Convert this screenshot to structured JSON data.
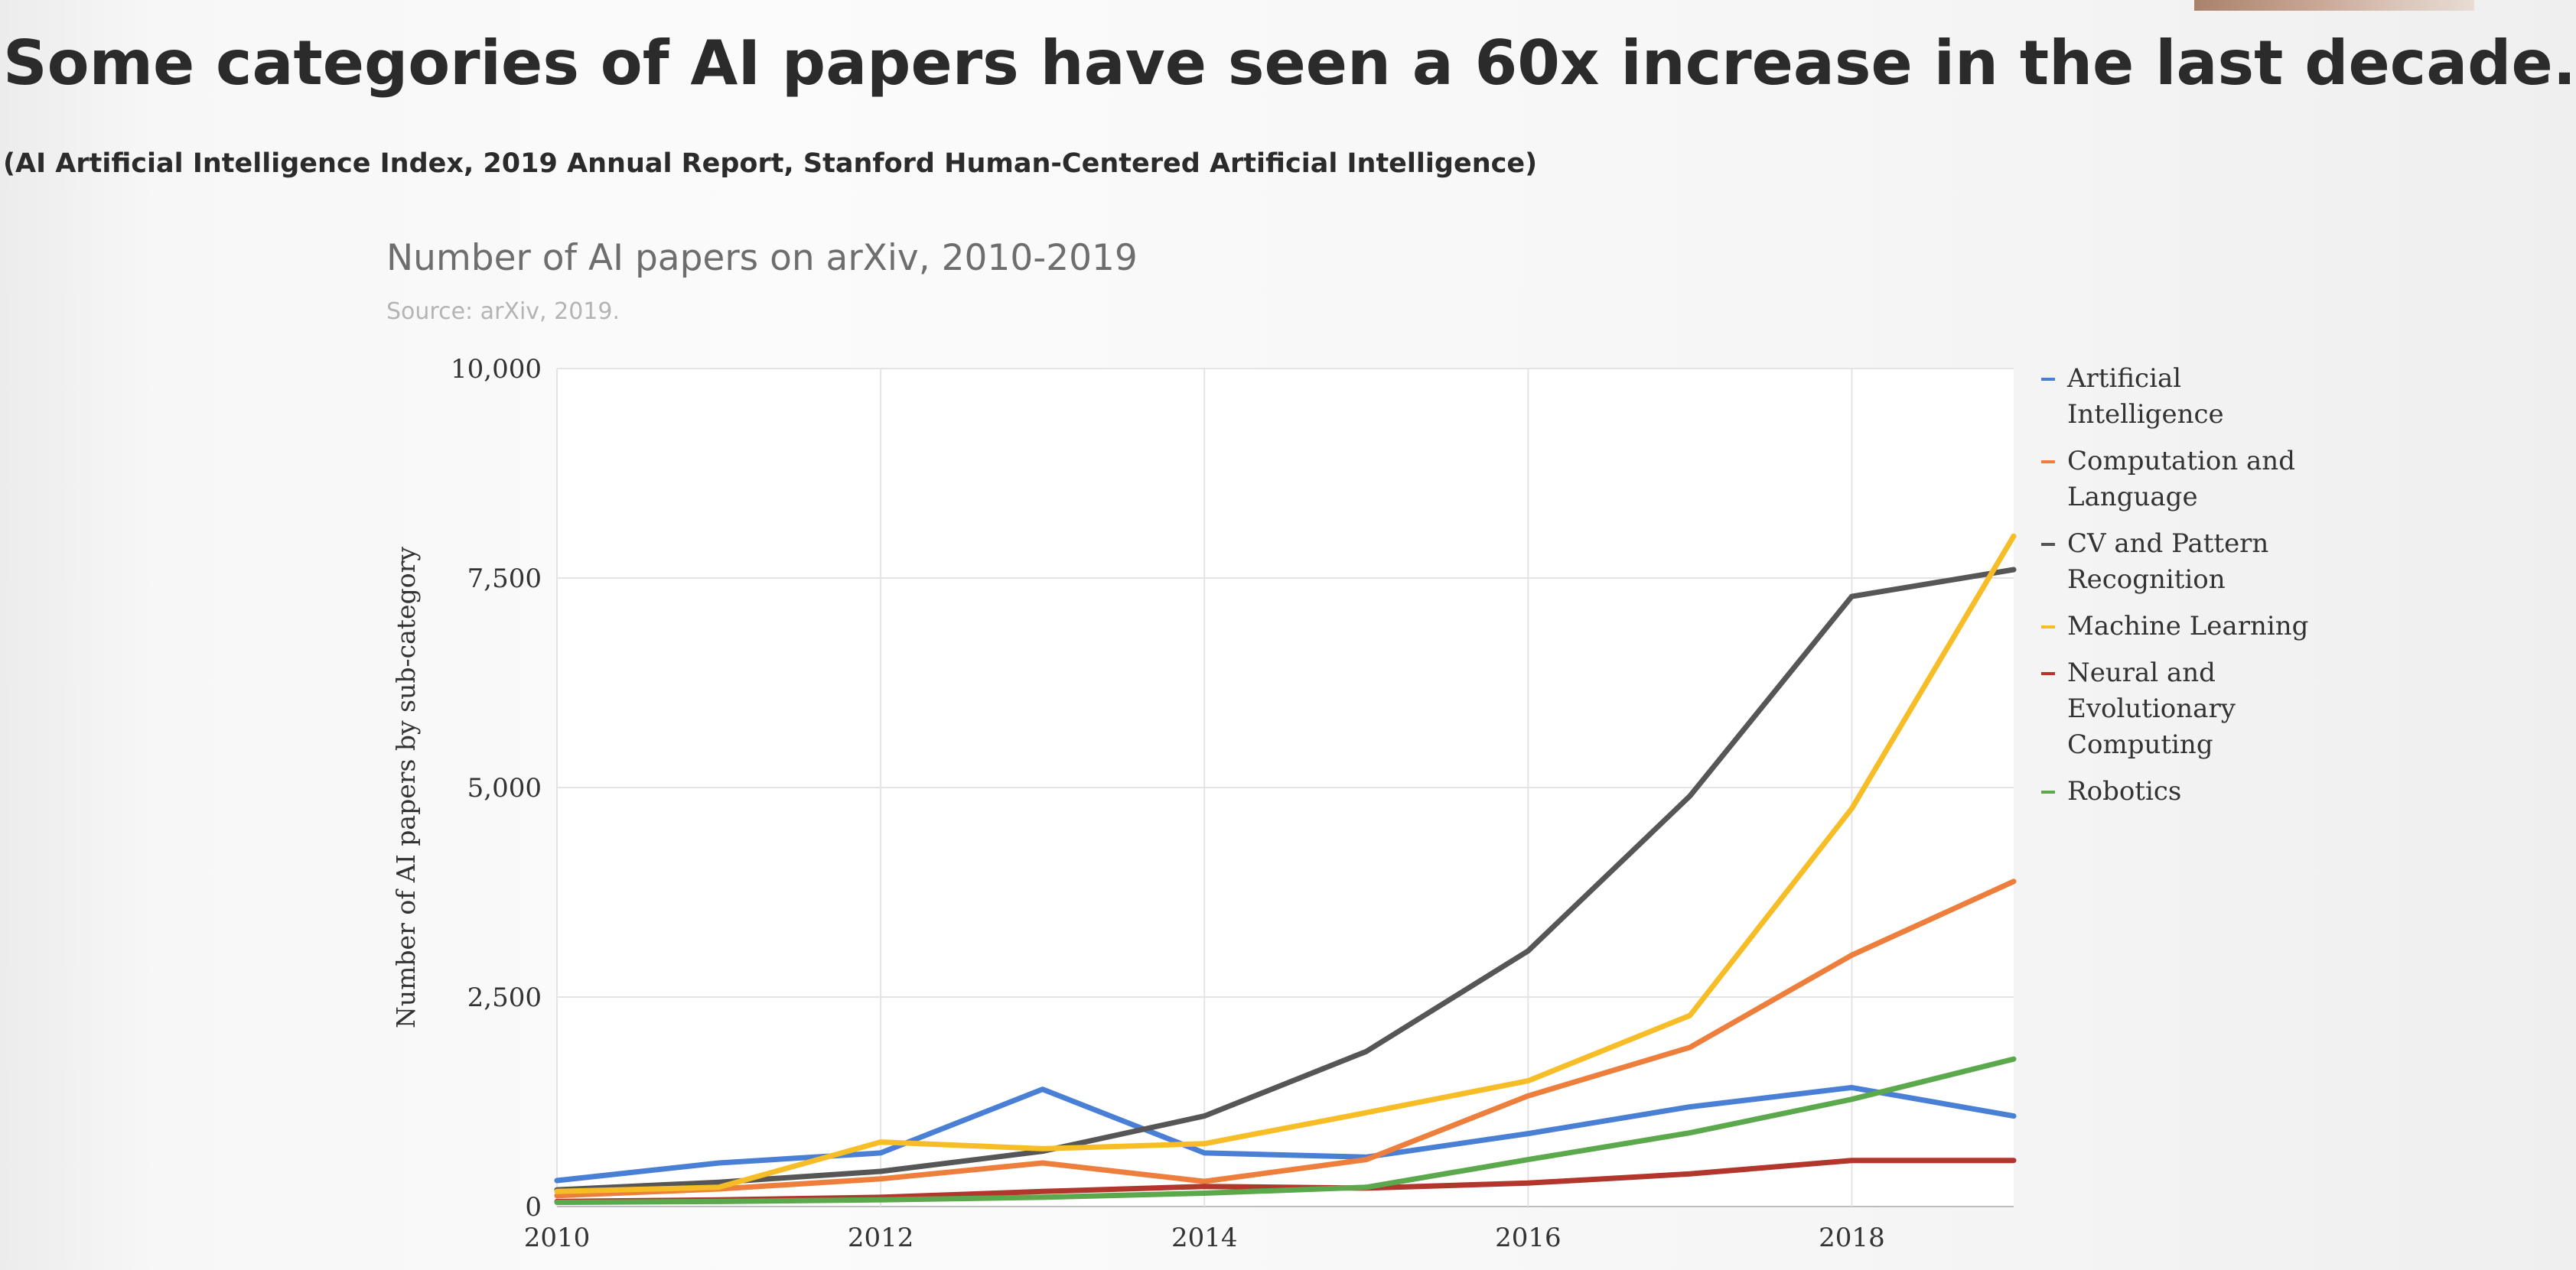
{
  "slide": {
    "title": "Some categories of AI papers have seen a 60x increase in the last decade.",
    "citation": "(AI Artificial Intelligence Index, 2019 Annual Report, Stanford Human-Centered Artificial Intelligence)"
  },
  "chart_data": {
    "type": "line",
    "title": "Number of AI papers on arXiv, 2010-2019",
    "subtitle": "Source: arXiv, 2019.",
    "xlabel": "",
    "ylabel": "Number of AI papers by sub-category",
    "x": [
      2010,
      2011,
      2012,
      2013,
      2014,
      2015,
      2016,
      2017,
      2018,
      2019
    ],
    "x_ticks": [
      2010,
      2012,
      2014,
      2016,
      2018
    ],
    "x_tick_labels": [
      "2010",
      "2012",
      "2014",
      "2016",
      "2018"
    ],
    "xlim": [
      2010,
      2019
    ],
    "y_ticks": [
      0,
      2500,
      5000,
      7500,
      10000
    ],
    "y_tick_labels": [
      "0",
      "2,500",
      "5,000",
      "7,500",
      "10,000"
    ],
    "ylim": [
      0,
      10000
    ],
    "grid": true,
    "legend_position": "right",
    "series": [
      {
        "name": "Artificial Intelligence",
        "color": "#4a7fd6",
        "values": [
          310,
          520,
          640,
          1400,
          640,
          590,
          870,
          1190,
          1420,
          1080
        ]
      },
      {
        "name": "Computation and Language",
        "color": "#ee7e3c",
        "values": [
          130,
          210,
          330,
          520,
          300,
          560,
          1320,
          1900,
          3000,
          3880
        ]
      },
      {
        "name": "CV and Pattern Recognition",
        "color": "#565656",
        "values": [
          200,
          290,
          420,
          660,
          1080,
          1850,
          3050,
          4900,
          7280,
          7600
        ]
      },
      {
        "name": "Machine Learning",
        "color": "#f6bd26",
        "values": [
          180,
          230,
          770,
          690,
          750,
          1120,
          1500,
          2280,
          4750,
          8000
        ]
      },
      {
        "name": "Neural and Evolutionary Computing",
        "color": "#b3362d",
        "values": [
          60,
          80,
          110,
          180,
          240,
          220,
          280,
          390,
          550,
          550
        ]
      },
      {
        "name": "Robotics",
        "color": "#5ca84c",
        "values": [
          50,
          60,
          80,
          110,
          160,
          230,
          560,
          880,
          1280,
          1760
        ]
      }
    ]
  }
}
